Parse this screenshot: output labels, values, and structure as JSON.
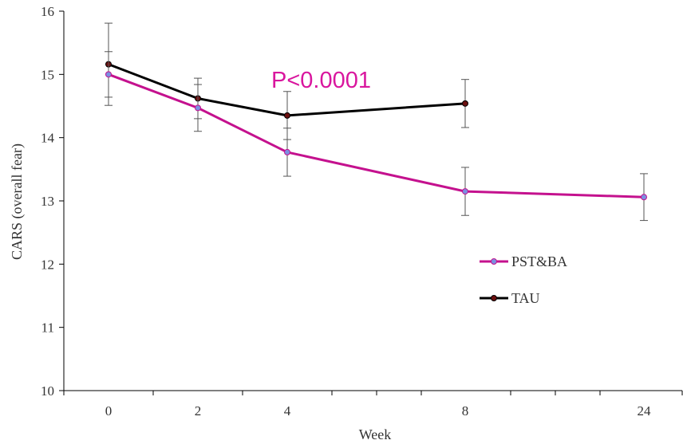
{
  "chart_data": {
    "type": "line",
    "title": "",
    "xlabel": "Week",
    "ylabel": "CARS (overall fear)",
    "ylim": [
      10,
      16
    ],
    "yticks": [
      10,
      11,
      12,
      13,
      14,
      15,
      16
    ],
    "xticks": [
      0,
      2,
      4,
      8,
      24
    ],
    "categories": [
      "0",
      "2",
      "4",
      "8",
      "24"
    ],
    "grid": false,
    "legend_position": "right",
    "annotation": {
      "text": "P<0.0001",
      "color": "#d9169e"
    },
    "series": [
      {
        "name": "PST&BA",
        "color": "#c4118e",
        "marker_color": "#7b8fe0",
        "values": [
          15.0,
          14.47,
          13.77,
          13.15,
          13.06
        ],
        "error": [
          0.36,
          0.37,
          0.38,
          0.38,
          0.37
        ]
      },
      {
        "name": "TAU",
        "color": "#000000",
        "marker_color": "#6b0f0f",
        "values": [
          15.16,
          14.62,
          14.35,
          14.54,
          null
        ],
        "error": [
          0.65,
          0.32,
          0.38,
          0.38,
          null
        ]
      }
    ]
  }
}
